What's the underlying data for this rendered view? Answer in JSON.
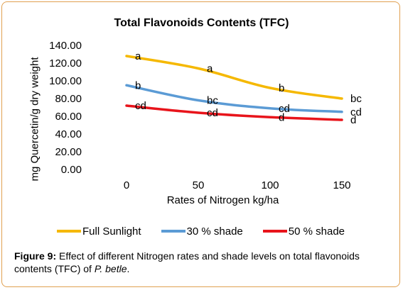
{
  "chart_data": {
    "type": "line",
    "title": "Total Flavonoids Contents (TFC)",
    "xlabel": "Rates of Nitrogen kg/ha",
    "ylabel": "mg Quercetin/g dry weight",
    "categories": [
      "0",
      "50",
      "100",
      "150"
    ],
    "ylim": [
      0,
      140
    ],
    "yticks": [
      "0.00",
      "20.00",
      "40.00",
      "60.00",
      "80.00",
      "100.00",
      "120.00",
      "140.00"
    ],
    "grid": false,
    "legend_position": "bottom",
    "series": [
      {
        "name": "Full Sunlight",
        "color": "#f5b800",
        "values": [
          128,
          114,
          92,
          80
        ],
        "labels": [
          "a",
          "a",
          "b",
          "bc"
        ]
      },
      {
        "name": "30 % shade",
        "color": "#5b9bd5",
        "values": [
          95,
          78,
          69,
          65
        ],
        "labels": [
          "b",
          "bc",
          "cd",
          "cd"
        ]
      },
      {
        "name": "50 % shade",
        "color": "#e8141b",
        "values": [
          72,
          64,
          59,
          56
        ],
        "labels": [
          "cd",
          "cd",
          "d",
          "d"
        ]
      }
    ]
  },
  "caption": {
    "label": "Figure 9:",
    "text": " Effect of different Nitrogen rates and shade levels on total flavonoids contents (TFC) of ",
    "species": "P. betle",
    "end": "."
  }
}
